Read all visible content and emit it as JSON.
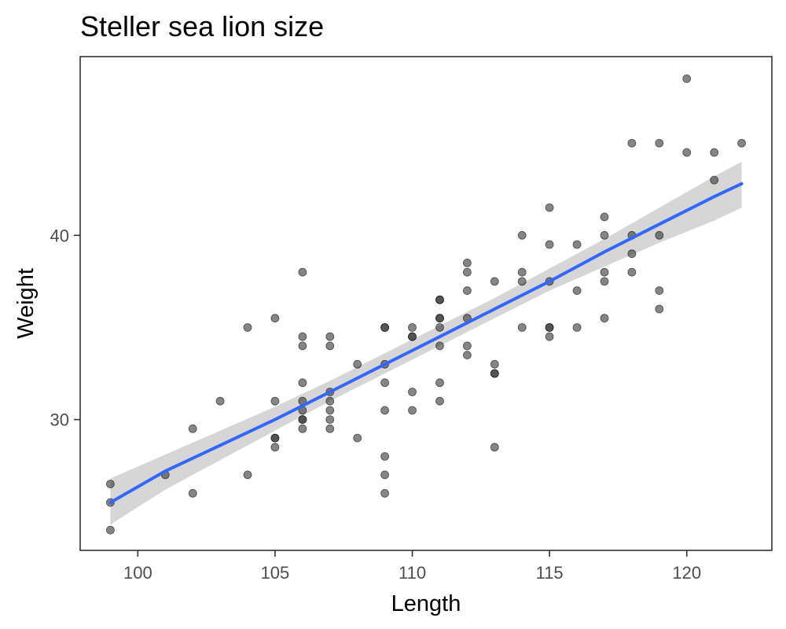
{
  "chart_data": {
    "type": "scatter",
    "title": "Steller sea lion size",
    "xlabel": "Length",
    "ylabel": "Weight",
    "xlim": [
      97.9,
      123.1
    ],
    "ylim": [
      22.9,
      49.7
    ],
    "xticks": [
      100,
      105,
      110,
      115,
      120
    ],
    "yticks": [
      30,
      40
    ],
    "grid": false,
    "colors": {
      "points": "#333333",
      "fit_line": "#3366FF",
      "confidence_band": "#999999",
      "panel_border": "#333333"
    },
    "points": [
      {
        "x": 99,
        "y": 26.5
      },
      {
        "x": 99,
        "y": 25.5
      },
      {
        "x": 99,
        "y": 24.0
      },
      {
        "x": 101,
        "y": 27.0
      },
      {
        "x": 102,
        "y": 29.5
      },
      {
        "x": 102,
        "y": 26.0
      },
      {
        "x": 103,
        "y": 31.0
      },
      {
        "x": 104,
        "y": 35.0
      },
      {
        "x": 104,
        "y": 27.0
      },
      {
        "x": 105,
        "y": 35.5
      },
      {
        "x": 105,
        "y": 31.0
      },
      {
        "x": 105,
        "y": 29.0
      },
      {
        "x": 105,
        "y": 29.0
      },
      {
        "x": 105,
        "y": 28.5
      },
      {
        "x": 106,
        "y": 38.0
      },
      {
        "x": 106,
        "y": 34.5
      },
      {
        "x": 106,
        "y": 34.0
      },
      {
        "x": 106,
        "y": 32.0
      },
      {
        "x": 106,
        "y": 31.0
      },
      {
        "x": 106,
        "y": 30.5
      },
      {
        "x": 106,
        "y": 30.0
      },
      {
        "x": 106,
        "y": 30.0
      },
      {
        "x": 106,
        "y": 29.5
      },
      {
        "x": 107,
        "y": 34.5
      },
      {
        "x": 107,
        "y": 34.0
      },
      {
        "x": 107,
        "y": 31.5
      },
      {
        "x": 107,
        "y": 31.0
      },
      {
        "x": 107,
        "y": 30.5
      },
      {
        "x": 107,
        "y": 30.0
      },
      {
        "x": 107,
        "y": 29.5
      },
      {
        "x": 108,
        "y": 33.0
      },
      {
        "x": 108,
        "y": 29.0
      },
      {
        "x": 109,
        "y": 35.0
      },
      {
        "x": 109,
        "y": 35.0
      },
      {
        "x": 109,
        "y": 33.0
      },
      {
        "x": 109,
        "y": 32.0
      },
      {
        "x": 109,
        "y": 30.5
      },
      {
        "x": 109,
        "y": 28.0
      },
      {
        "x": 109,
        "y": 27.0
      },
      {
        "x": 109,
        "y": 26.0
      },
      {
        "x": 110,
        "y": 35.0
      },
      {
        "x": 110,
        "y": 34.5
      },
      {
        "x": 110,
        "y": 34.5
      },
      {
        "x": 110,
        "y": 31.5
      },
      {
        "x": 110,
        "y": 30.5
      },
      {
        "x": 111,
        "y": 36.5
      },
      {
        "x": 111,
        "y": 36.5
      },
      {
        "x": 111,
        "y": 35.5
      },
      {
        "x": 111,
        "y": 35.5
      },
      {
        "x": 111,
        "y": 35.0
      },
      {
        "x": 111,
        "y": 34.0
      },
      {
        "x": 111,
        "y": 32.0
      },
      {
        "x": 111,
        "y": 31.0
      },
      {
        "x": 112,
        "y": 38.5
      },
      {
        "x": 112,
        "y": 38.0
      },
      {
        "x": 112,
        "y": 37.0
      },
      {
        "x": 112,
        "y": 35.5
      },
      {
        "x": 112,
        "y": 34.0
      },
      {
        "x": 112,
        "y": 33.5
      },
      {
        "x": 113,
        "y": 37.5
      },
      {
        "x": 113,
        "y": 33.0
      },
      {
        "x": 113,
        "y": 32.5
      },
      {
        "x": 113,
        "y": 32.5
      },
      {
        "x": 113,
        "y": 28.5
      },
      {
        "x": 114,
        "y": 40.0
      },
      {
        "x": 114,
        "y": 38.0
      },
      {
        "x": 114,
        "y": 37.5
      },
      {
        "x": 114,
        "y": 35.0
      },
      {
        "x": 115,
        "y": 41.5
      },
      {
        "x": 115,
        "y": 39.5
      },
      {
        "x": 115,
        "y": 37.5
      },
      {
        "x": 115,
        "y": 35.0
      },
      {
        "x": 115,
        "y": 35.0
      },
      {
        "x": 115,
        "y": 34.5
      },
      {
        "x": 116,
        "y": 39.5
      },
      {
        "x": 116,
        "y": 37.0
      },
      {
        "x": 116,
        "y": 35.0
      },
      {
        "x": 117,
        "y": 41.0
      },
      {
        "x": 117,
        "y": 40.0
      },
      {
        "x": 117,
        "y": 38.0
      },
      {
        "x": 117,
        "y": 37.5
      },
      {
        "x": 117,
        "y": 35.5
      },
      {
        "x": 118,
        "y": 45.0
      },
      {
        "x": 118,
        "y": 40.0
      },
      {
        "x": 118,
        "y": 39.0
      },
      {
        "x": 118,
        "y": 38.0
      },
      {
        "x": 119,
        "y": 45.0
      },
      {
        "x": 119,
        "y": 40.0
      },
      {
        "x": 119,
        "y": 37.0
      },
      {
        "x": 119,
        "y": 36.0
      },
      {
        "x": 120,
        "y": 48.5
      },
      {
        "x": 120,
        "y": 44.5
      },
      {
        "x": 121,
        "y": 44.5
      },
      {
        "x": 121,
        "y": 43.0
      },
      {
        "x": 122,
        "y": 45.0
      }
    ],
    "fit": {
      "method": "linear",
      "x": [
        99,
        101,
        103,
        105,
        107,
        109,
        111,
        113,
        115,
        117,
        119,
        121,
        122
      ],
      "y": [
        25.5,
        27.2,
        28.6,
        30.0,
        31.5,
        33.0,
        34.5,
        36.0,
        37.5,
        39.1,
        40.6,
        42.1,
        42.8
      ],
      "lower": [
        24.3,
        26.2,
        27.8,
        29.4,
        31.0,
        32.5,
        34.0,
        35.5,
        37.0,
        38.3,
        39.6,
        40.8,
        41.5
      ],
      "upper": [
        26.8,
        28.1,
        29.4,
        30.7,
        32.1,
        33.6,
        35.1,
        36.6,
        38.2,
        39.8,
        41.5,
        43.2,
        44.0
      ]
    }
  }
}
